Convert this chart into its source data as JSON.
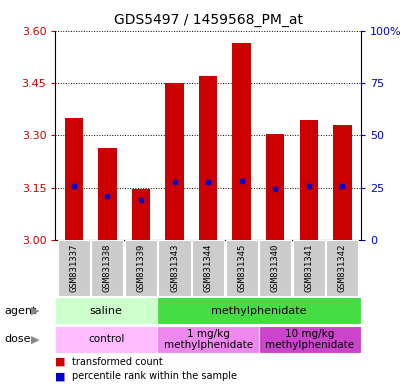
{
  "title": "GDS5497 / 1459568_PM_at",
  "samples": [
    "GSM831337",
    "GSM831338",
    "GSM831339",
    "GSM831343",
    "GSM831344",
    "GSM831345",
    "GSM831340",
    "GSM831341",
    "GSM831342"
  ],
  "bar_tops": [
    3.35,
    3.265,
    3.145,
    3.45,
    3.47,
    3.565,
    3.305,
    3.345,
    3.33
  ],
  "bar_bottoms": [
    3.0,
    3.0,
    3.0,
    3.0,
    3.0,
    3.0,
    3.0,
    3.0,
    3.0
  ],
  "percentile_values": [
    3.155,
    3.125,
    3.115,
    3.165,
    3.165,
    3.17,
    3.145,
    3.155,
    3.155
  ],
  "ylim": [
    3.0,
    3.6
  ],
  "yticks_left": [
    3.0,
    3.15,
    3.3,
    3.45,
    3.6
  ],
  "yticks_right": [
    0,
    25,
    50,
    75,
    100
  ],
  "bar_color": "#cc0000",
  "percentile_color": "#0000cc",
  "agent_groups": [
    {
      "label": "saline",
      "start": 0,
      "end": 3,
      "color": "#ccffcc"
    },
    {
      "label": "methylphenidate",
      "start": 3,
      "end": 9,
      "color": "#44dd44"
    }
  ],
  "dose_groups": [
    {
      "label": "control",
      "start": 0,
      "end": 3,
      "color": "#ffbbff"
    },
    {
      "label": "1 mg/kg\nmethylphenidate",
      "start": 3,
      "end": 6,
      "color": "#ee88ee"
    },
    {
      "label": "10 mg/kg\nmethylphenidate",
      "start": 6,
      "end": 9,
      "color": "#cc44cc"
    }
  ],
  "legend_items": [
    {
      "label": "transformed count",
      "color": "#cc0000"
    },
    {
      "label": "percentile rank within the sample",
      "color": "#0000cc"
    }
  ],
  "tick_label_color_left": "#cc0000",
  "tick_label_color_right": "#0000cc",
  "title_fontsize": 10,
  "sample_label_bg": "#cccccc",
  "bar_width": 0.55
}
